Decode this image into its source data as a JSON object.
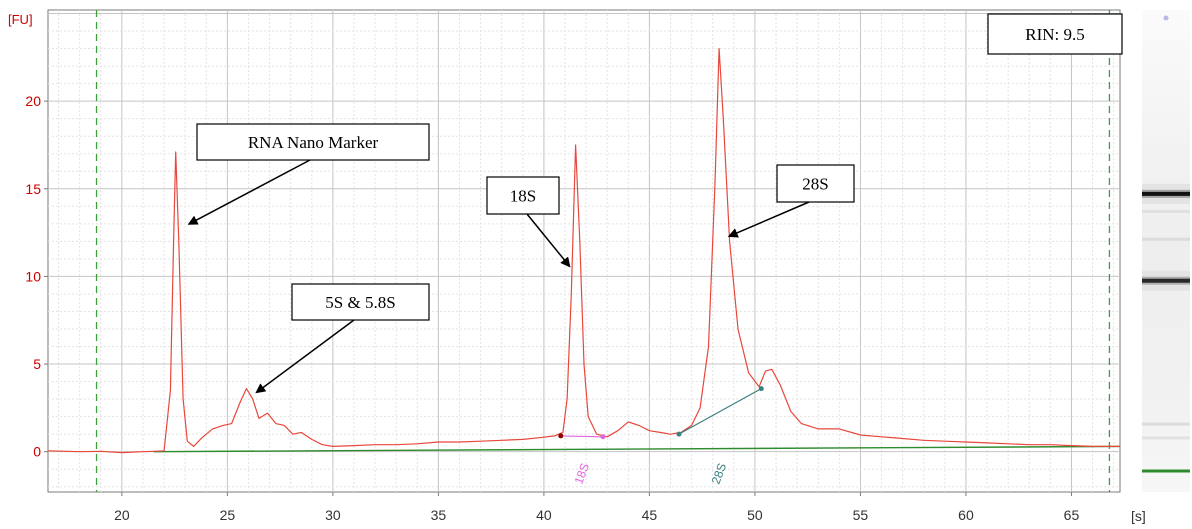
{
  "chart_data": {
    "type": "line",
    "title": "",
    "xlabel": "[s]",
    "ylabel": "[FU]",
    "xlim": [
      16.5,
      67.3
    ],
    "ylim": [
      -2.3,
      25.2
    ],
    "grid": true,
    "x_ticks": [
      "20",
      "25",
      "30",
      "35",
      "40",
      "45",
      "50",
      "55",
      "60",
      "65"
    ],
    "x_tick_values": [
      20,
      25,
      30,
      35,
      40,
      45,
      50,
      55,
      60,
      65
    ],
    "y_ticks": [
      "0",
      "5",
      "10",
      "15",
      "20"
    ],
    "y_tick_values": [
      0,
      5,
      10,
      15,
      20
    ],
    "colors": {
      "trace": "#e8473c",
      "baseline": "#2e8b2e",
      "grid": "#c8c8c8",
      "axis_labels": "#cc0000",
      "dashed_markers": "#3aa03a",
      "peak18": "#e066e0",
      "peak28": "#3c8080",
      "dot": "#8b0000"
    },
    "vertical_markers_x": [
      18.8,
      66.8
    ],
    "series": [
      {
        "points": [
          [
            16.5,
            0.05
          ],
          [
            18,
            0.0
          ],
          [
            19,
            0.02
          ],
          [
            20,
            -0.05
          ],
          [
            21,
            0.0
          ],
          [
            21.5,
            0.02
          ],
          [
            22.0,
            0.05
          ],
          [
            22.3,
            3.5
          ],
          [
            22.45,
            12.0
          ],
          [
            22.55,
            17.1
          ],
          [
            22.7,
            12.0
          ],
          [
            22.9,
            3.0
          ],
          [
            23.1,
            0.6
          ],
          [
            23.4,
            0.3
          ],
          [
            23.8,
            0.8
          ],
          [
            24.3,
            1.3
          ],
          [
            24.8,
            1.5
          ],
          [
            25.2,
            1.6
          ],
          [
            25.6,
            2.8
          ],
          [
            25.9,
            3.6
          ],
          [
            26.2,
            3.0
          ],
          [
            26.5,
            1.9
          ],
          [
            26.9,
            2.2
          ],
          [
            27.3,
            1.6
          ],
          [
            27.7,
            1.5
          ],
          [
            28.1,
            1.0
          ],
          [
            28.5,
            1.1
          ],
          [
            29.0,
            0.7
          ],
          [
            29.5,
            0.4
          ],
          [
            30,
            0.3
          ],
          [
            31,
            0.35
          ],
          [
            32,
            0.4
          ],
          [
            33,
            0.4
          ],
          [
            34,
            0.45
          ],
          [
            35,
            0.55
          ],
          [
            36,
            0.55
          ],
          [
            37,
            0.6
          ],
          [
            38,
            0.65
          ],
          [
            39,
            0.7
          ],
          [
            39.8,
            0.8
          ],
          [
            40.5,
            0.9
          ],
          [
            40.9,
            1.1
          ],
          [
            41.1,
            3.0
          ],
          [
            41.3,
            9.0
          ],
          [
            41.5,
            17.5
          ],
          [
            41.7,
            12.0
          ],
          [
            41.9,
            5.0
          ],
          [
            42.1,
            2.0
          ],
          [
            42.5,
            1.0
          ],
          [
            43.0,
            0.85
          ],
          [
            43.5,
            1.2
          ],
          [
            44.0,
            1.7
          ],
          [
            44.5,
            1.5
          ],
          [
            45.0,
            1.2
          ],
          [
            45.5,
            1.1
          ],
          [
            46.0,
            1.0
          ],
          [
            46.5,
            1.1
          ],
          [
            47.0,
            1.5
          ],
          [
            47.4,
            2.5
          ],
          [
            47.8,
            6.0
          ],
          [
            48.1,
            15.0
          ],
          [
            48.3,
            23.0
          ],
          [
            48.5,
            19.0
          ],
          [
            48.8,
            12.0
          ],
          [
            49.2,
            7.0
          ],
          [
            49.7,
            4.5
          ],
          [
            50.2,
            3.7
          ],
          [
            50.5,
            4.6
          ],
          [
            50.8,
            4.7
          ],
          [
            51.2,
            3.8
          ],
          [
            51.7,
            2.3
          ],
          [
            52.2,
            1.6
          ],
          [
            53.0,
            1.3
          ],
          [
            54.0,
            1.3
          ],
          [
            55.0,
            0.95
          ],
          [
            56.0,
            0.85
          ],
          [
            57.0,
            0.75
          ],
          [
            58.0,
            0.65
          ],
          [
            59.0,
            0.6
          ],
          [
            60.0,
            0.55
          ],
          [
            61.0,
            0.5
          ],
          [
            62.0,
            0.45
          ],
          [
            63.0,
            0.4
          ],
          [
            64.0,
            0.4
          ],
          [
            65.0,
            0.35
          ],
          [
            66.0,
            0.3
          ],
          [
            67.3,
            0.3
          ]
        ]
      }
    ],
    "baseline": [
      [
        21.5,
        0.0
      ],
      [
        67.3,
        0.3
      ]
    ],
    "peak_region_18S": {
      "start": [
        40.8,
        0.9
      ],
      "end": [
        42.8,
        0.85
      ],
      "label": "18S",
      "x": 41.8
    },
    "peak_region_28S": {
      "start": [
        46.4,
        1.0
      ],
      "end": [
        50.3,
        3.6
      ],
      "label": "28S",
      "x": 48.3
    },
    "annotations": [
      {
        "text": "RNA Nano Marker",
        "arrow_to": [
          23.2,
          13.0
        ]
      },
      {
        "text": "5S & 5.8S",
        "arrow_to": [
          26.4,
          3.4
        ]
      },
      {
        "text": "18S",
        "arrow_to": [
          41.2,
          10.6
        ]
      },
      {
        "text": "28S",
        "arrow_to": [
          48.8,
          12.3
        ]
      }
    ],
    "rin_label": "RIN: 9.5",
    "gel_bands": [
      {
        "position": 0.385,
        "intensity": 1.0
      },
      {
        "position": 0.573,
        "intensity": 0.85
      }
    ]
  }
}
